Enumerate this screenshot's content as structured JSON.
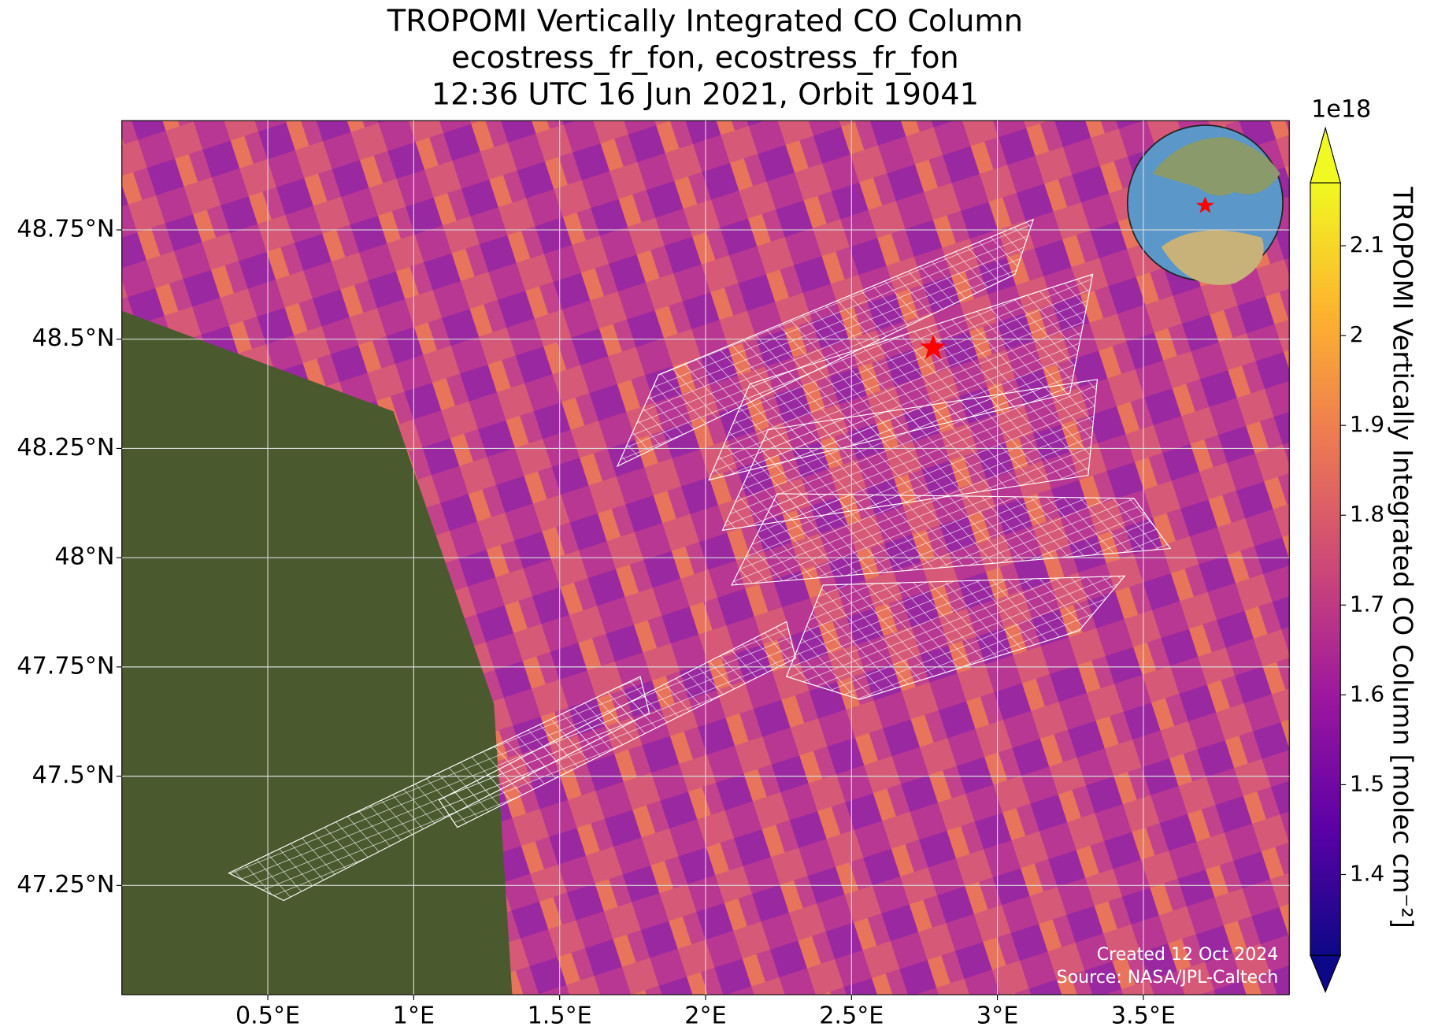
{
  "chart_data": {
    "type": "map",
    "title": [
      "TROPOMI Vertically Integrated CO Column",
      "ecostress_fr_fon, ecostress_fr_fon",
      "12:36 UTC 16 Jun 2021, Orbit 19041"
    ],
    "xlim": [
      0,
      4
    ],
    "ylim": [
      47,
      49
    ],
    "xticks": [
      {
        "value": 0.5,
        "label": "0.5°E"
      },
      {
        "value": 1,
        "label": "1°E"
      },
      {
        "value": 1.5,
        "label": "1.5°E"
      },
      {
        "value": 2,
        "label": "2°E"
      },
      {
        "value": 2.5,
        "label": "2.5°E"
      },
      {
        "value": 3,
        "label": "3°E"
      },
      {
        "value": 3.5,
        "label": "3.5°E"
      }
    ],
    "yticks": [
      {
        "value": 47.25,
        "label": "47.25°N"
      },
      {
        "value": 47.5,
        "label": "47.5°N"
      },
      {
        "value": 47.75,
        "label": "47.75°N"
      },
      {
        "value": 48,
        "label": "48°N"
      },
      {
        "value": 48.25,
        "label": "48.25°N"
      },
      {
        "value": 48.5,
        "label": "48.5°N"
      },
      {
        "value": 48.75,
        "label": "48.75°N"
      }
    ],
    "grid": true,
    "marker": {
      "lon": 2.78,
      "lat": 48.48,
      "color": "#ff0000"
    },
    "colorbar": {
      "label": "TROPOMI Vertically Integrated CO Column [molec cm⁻²]",
      "offset_text": "1e18",
      "clim": [
        1.31,
        2.17
      ],
      "ticks": [
        1.4,
        1.5,
        1.6,
        1.7,
        1.8,
        1.9,
        2.0,
        2.1
      ],
      "colormap": [
        "#0d0887",
        "#5c01a6",
        "#9c179e",
        "#cc4778",
        "#ed7953",
        "#fdb42f",
        "#f0f921"
      ]
    },
    "annotations": [
      "Created 12 Oct 2024",
      "Source: NASA/JPL-Caltech"
    ]
  }
}
